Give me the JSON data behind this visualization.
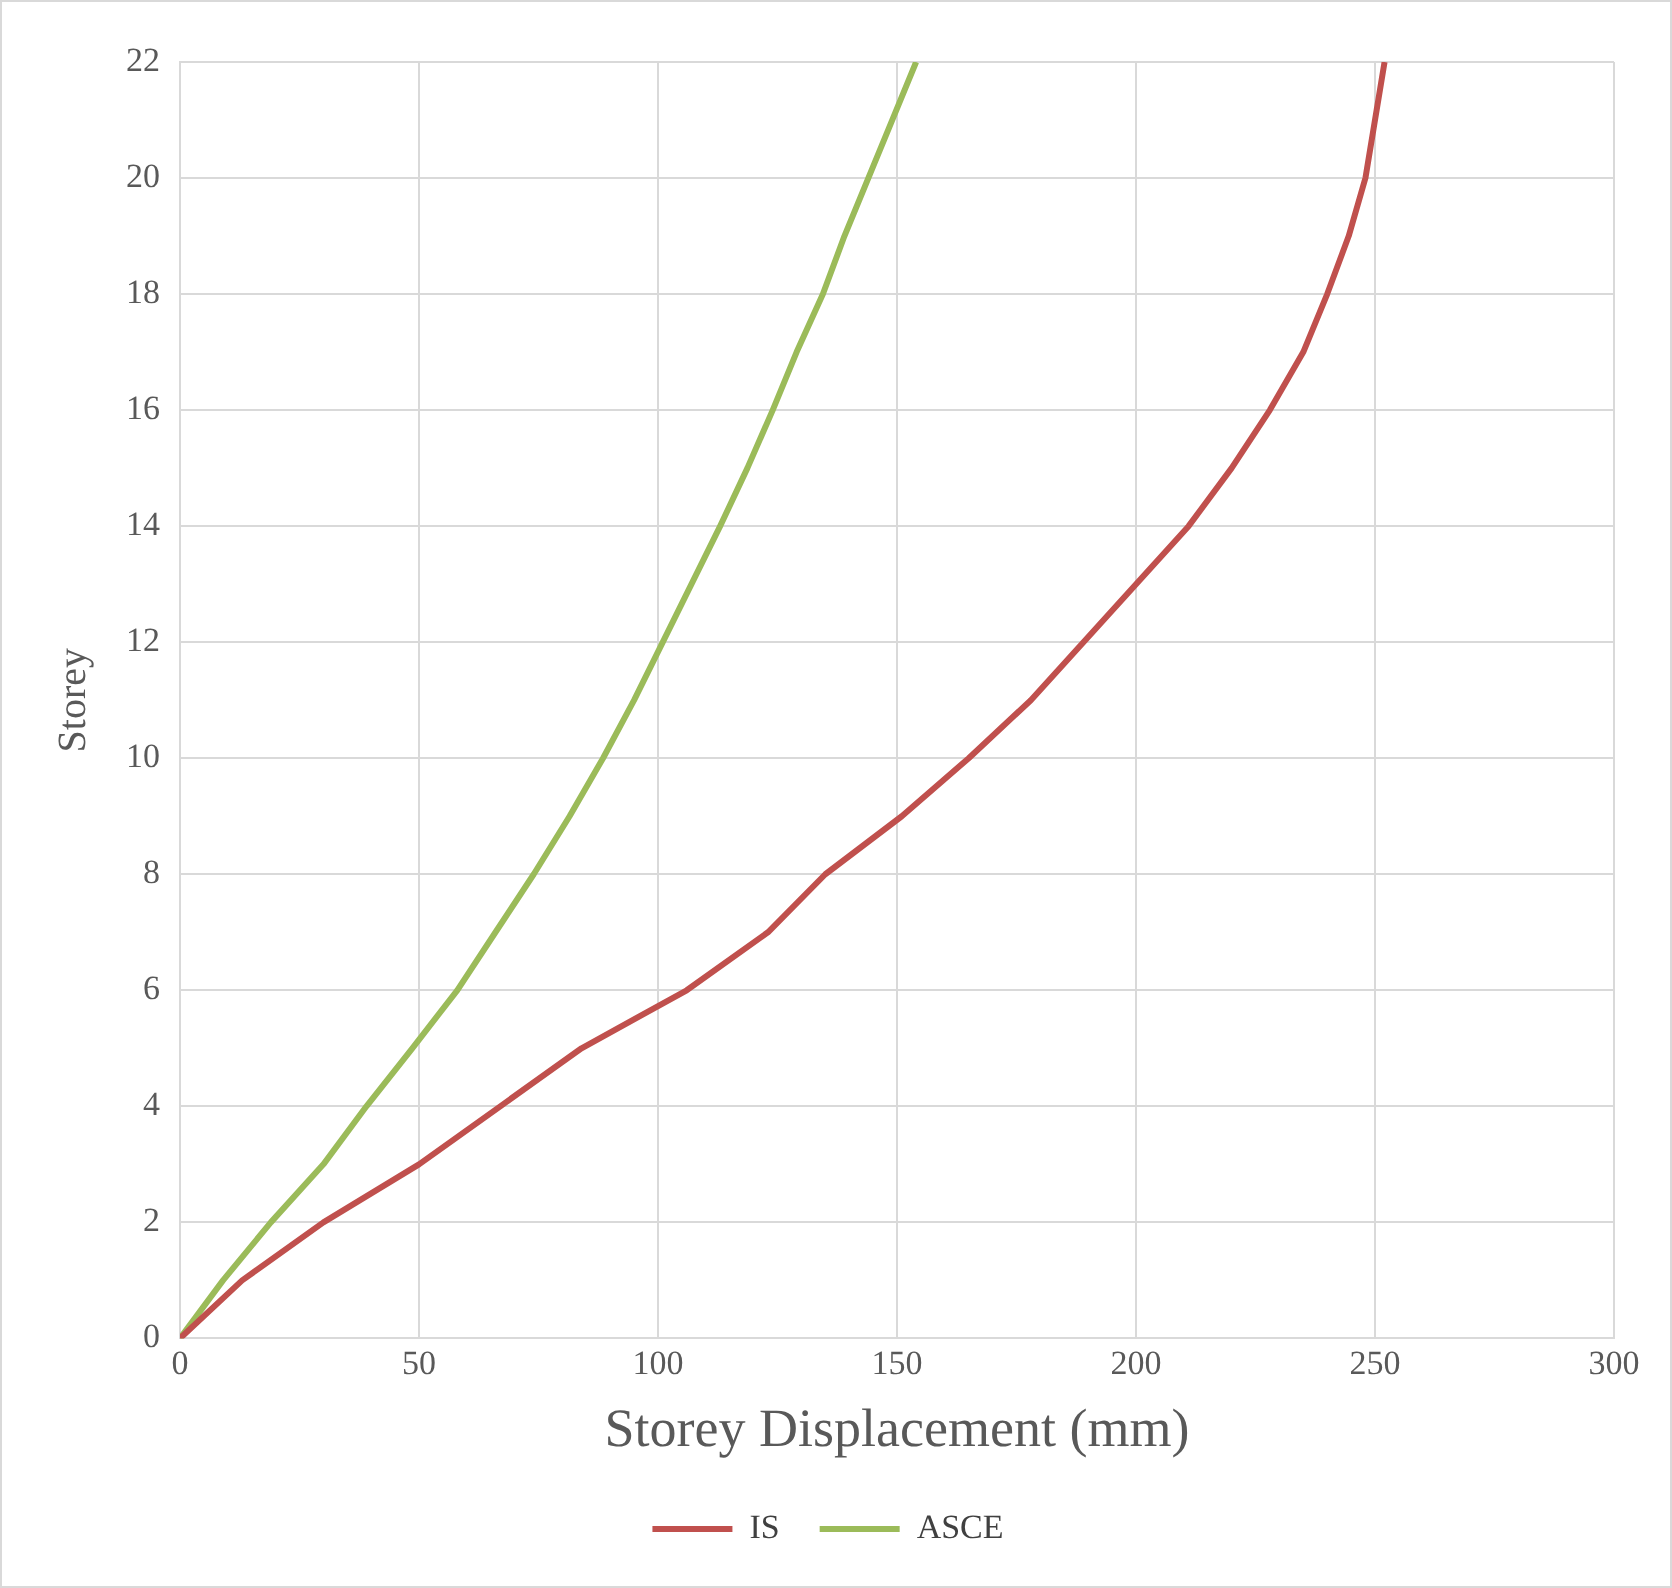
{
  "chart_data": {
    "type": "line",
    "xlabel": "Storey Displacement (mm)",
    "ylabel": "Storey",
    "xlim": [
      0,
      300
    ],
    "xticks": [
      0,
      50,
      100,
      150,
      200,
      250,
      300
    ],
    "ylim": [
      0,
      22
    ],
    "yticks": [
      0,
      2,
      4,
      6,
      8,
      10,
      12,
      14,
      16,
      18,
      20,
      22
    ],
    "grid": true,
    "legend": "bottom",
    "marker": "none",
    "series": [
      {
        "name": "IS",
        "color": "#c0504d",
        "x": [
          0,
          13,
          30,
          50,
          67,
          84,
          106,
          123,
          135,
          151,
          165,
          178,
          189,
          200,
          211,
          220,
          228,
          235,
          240,
          244.5,
          248,
          250,
          252
        ],
        "values": [
          0,
          1,
          2,
          3,
          4,
          5,
          6,
          7,
          8,
          9,
          10,
          11,
          12,
          13,
          14,
          15,
          16,
          17,
          18,
          19,
          20,
          21,
          22
        ]
      },
      {
        "name": "ASCE",
        "color": "#9bbb59",
        "x": [
          0,
          9,
          19,
          30,
          39,
          48.6,
          58,
          66,
          74,
          81.5,
          88.5,
          95,
          101,
          107,
          113,
          118.7,
          124,
          129,
          134.5,
          139,
          144,
          149,
          154
        ],
        "values": [
          0,
          1,
          2,
          3,
          4,
          5,
          6,
          7,
          8,
          9,
          10,
          11,
          12,
          13,
          14,
          15,
          16,
          17,
          18,
          19,
          20,
          21,
          22
        ]
      }
    ]
  }
}
